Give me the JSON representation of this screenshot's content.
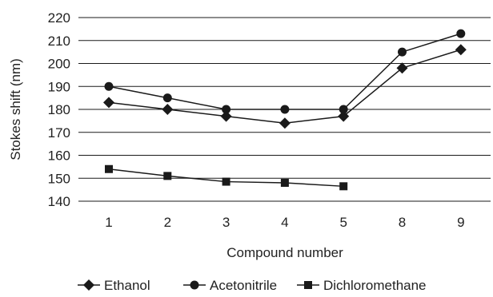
{
  "chart_data": {
    "type": "line",
    "title": "",
    "xlabel": "Compound number",
    "ylabel": "Stokes shift (nm)",
    "categories": [
      "1",
      "2",
      "3",
      "4",
      "5",
      "8",
      "9"
    ],
    "ylim": [
      140,
      220
    ],
    "yticks": [
      140,
      150,
      160,
      170,
      180,
      190,
      200,
      210,
      220
    ],
    "grid": "horizontal",
    "legend_position": "bottom",
    "series": [
      {
        "name": "Ethanol",
        "marker": "diamond",
        "values": [
          183,
          180,
          177,
          174,
          177,
          198,
          206
        ]
      },
      {
        "name": "Acetonitrile",
        "marker": "circle",
        "values": [
          190,
          185,
          180,
          180,
          180,
          205,
          213
        ]
      },
      {
        "name": "Dichloromethane",
        "marker": "square",
        "values": [
          154,
          151,
          148.5,
          148,
          146.5,
          null,
          null
        ]
      }
    ],
    "colors": {
      "line": "#1a1a1a",
      "text": "#222222",
      "background": "#ffffff"
    }
  }
}
